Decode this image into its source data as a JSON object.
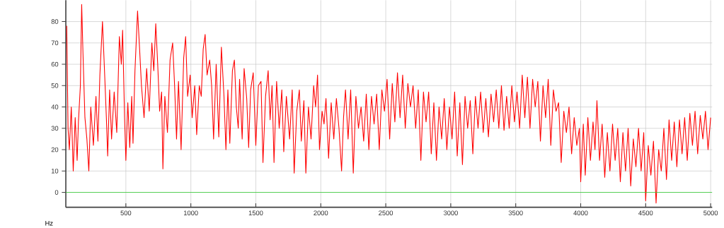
{
  "chart_data": {
    "type": "line",
    "xlabel": "Hz",
    "xlim": [
      38,
      5012
    ],
    "ylim": [
      -7,
      90
    ],
    "xticks": [
      500,
      1000,
      1500,
      2000,
      2500,
      3000,
      3500,
      4000,
      4500,
      5000
    ],
    "yticks": [
      0,
      10,
      20,
      30,
      40,
      50,
      60,
      70,
      80
    ],
    "grid": true,
    "marker": "none",
    "line_style": "solid",
    "ref_lines": [
      {
        "axis": "y",
        "value": 0,
        "color": "#33cc33"
      }
    ],
    "series": [
      {
        "color": "#ff0000",
        "x": [
          45,
          55,
          65,
          80,
          95,
          110,
          125,
          135,
          150,
          160,
          170,
          185,
          200,
          215,
          230,
          250,
          270,
          285,
          300,
          320,
          335,
          350,
          360,
          375,
          390,
          410,
          430,
          450,
          465,
          475,
          490,
          500,
          515,
          530,
          545,
          555,
          570,
          590,
          605,
          620,
          640,
          660,
          680,
          700,
          715,
          730,
          745,
          760,
          775,
          785,
          800,
          820,
          840,
          860,
          875,
          890,
          905,
          925,
          945,
          960,
          975,
          995,
          1010,
          1030,
          1045,
          1065,
          1080,
          1095,
          1110,
          1125,
          1145,
          1160,
          1175,
          1195,
          1215,
          1235,
          1255,
          1270,
          1285,
          1300,
          1320,
          1335,
          1350,
          1365,
          1375,
          1395,
          1410,
          1430,
          1445,
          1460,
          1480,
          1500,
          1520,
          1540,
          1555,
          1575,
          1595,
          1610,
          1625,
          1640,
          1660,
          1680,
          1700,
          1715,
          1735,
          1760,
          1780,
          1795,
          1815,
          1835,
          1850,
          1870,
          1885,
          1905,
          1925,
          1945,
          1960,
          1975,
          1990,
          2010,
          2025,
          2040,
          2060,
          2080,
          2100,
          2120,
          2140,
          2160,
          2175,
          2190,
          2210,
          2230,
          2250,
          2270,
          2290,
          2310,
          2330,
          2350,
          2370,
          2390,
          2410,
          2430,
          2450,
          2470,
          2490,
          2510,
          2530,
          2550,
          2570,
          2590,
          2610,
          2630,
          2650,
          2670,
          2690,
          2710,
          2730,
          2750,
          2770,
          2790,
          2810,
          2830,
          2850,
          2870,
          2890,
          2910,
          2930,
          2950,
          2970,
          2990,
          3010,
          3030,
          3050,
          3070,
          3090,
          3110,
          3130,
          3150,
          3170,
          3190,
          3210,
          3230,
          3250,
          3270,
          3290,
          3310,
          3330,
          3350,
          3370,
          3390,
          3410,
          3430,
          3450,
          3470,
          3490,
          3510,
          3530,
          3550,
          3570,
          3590,
          3610,
          3630,
          3650,
          3670,
          3690,
          3710,
          3730,
          3750,
          3770,
          3790,
          3810,
          3830,
          3850,
          3870,
          3890,
          3910,
          3930,
          3950,
          3970,
          3990,
          4000,
          4020,
          4035,
          4055,
          4075,
          4095,
          4110,
          4125,
          4145,
          4165,
          4185,
          4205,
          4225,
          4245,
          4265,
          4285,
          4305,
          4325,
          4345,
          4365,
          4385,
          4405,
          4425,
          4445,
          4465,
          4485,
          4500,
          4520,
          4540,
          4560,
          4580,
          4600,
          4620,
          4640,
          4660,
          4680,
          4700,
          4720,
          4740,
          4760,
          4780,
          4800,
          4820,
          4840,
          4860,
          4880,
          4900,
          4920,
          4940,
          4960,
          4980,
          5000
        ],
        "values": [
          78,
          30,
          20,
          40,
          10,
          35,
          15,
          33,
          50,
          88,
          65,
          35,
          25,
          10,
          40,
          22,
          45,
          24,
          55,
          80,
          58,
          35,
          17,
          48,
          25,
          47,
          28,
          73,
          60,
          76,
          35,
          15,
          42,
          21,
          45,
          23,
          57,
          85,
          68,
          50,
          35,
          58,
          38,
          70,
          57,
          79,
          60,
          38,
          47,
          11,
          45,
          28,
          62,
          70,
          50,
          25,
          52,
          20,
          63,
          73,
          45,
          55,
          35,
          50,
          27,
          50,
          45,
          67,
          74,
          55,
          62,
          50,
          25,
          60,
          26,
          68,
          45,
          20,
          48,
          23,
          57,
          62,
          40,
          30,
          53,
          25,
          58,
          44,
          21,
          48,
          56,
          22,
          50,
          52,
          14,
          45,
          57,
          34,
          50,
          14,
          52,
          30,
          48,
          19,
          45,
          25,
          48,
          9,
          38,
          48,
          24,
          43,
          9,
          40,
          25,
          50,
          40,
          55,
          20,
          38,
          32,
          44,
          16,
          42,
          25,
          44,
          30,
          10,
          35,
          48,
          25,
          48,
          9,
          45,
          30,
          40,
          24,
          46,
          20,
          45,
          32,
          46,
          20,
          48,
          38,
          53,
          25,
          51,
          33,
          56,
          35,
          55,
          30,
          51,
          40,
          50,
          30,
          48,
          15,
          47,
          33,
          47,
          18,
          42,
          15,
          40,
          25,
          44,
          20,
          40,
          25,
          47,
          17,
          42,
          13,
          45,
          30,
          43,
          18,
          45,
          30,
          47,
          28,
          44,
          26,
          46,
          33,
          48,
          30,
          50,
          29,
          45,
          30,
          50,
          33,
          47,
          30,
          55,
          35,
          54,
          30,
          53,
          40,
          52,
          24,
          50,
          35,
          53,
          22,
          48,
          38,
          42,
          14,
          38,
          28,
          40,
          18,
          35,
          22,
          30,
          5,
          32,
          8,
          35,
          15,
          33,
          20,
          43,
          15,
          32,
          7,
          28,
          10,
          32,
          15,
          30,
          5,
          28,
          10,
          30,
          3,
          25,
          12,
          30,
          10,
          28,
          -4,
          22,
          8,
          24,
          -5,
          20,
          10,
          30,
          6,
          34,
          15,
          33,
          12,
          34,
          18,
          35,
          15,
          37,
          22,
          38,
          18,
          36,
          25,
          38,
          20,
          35
        ]
      }
    ]
  }
}
